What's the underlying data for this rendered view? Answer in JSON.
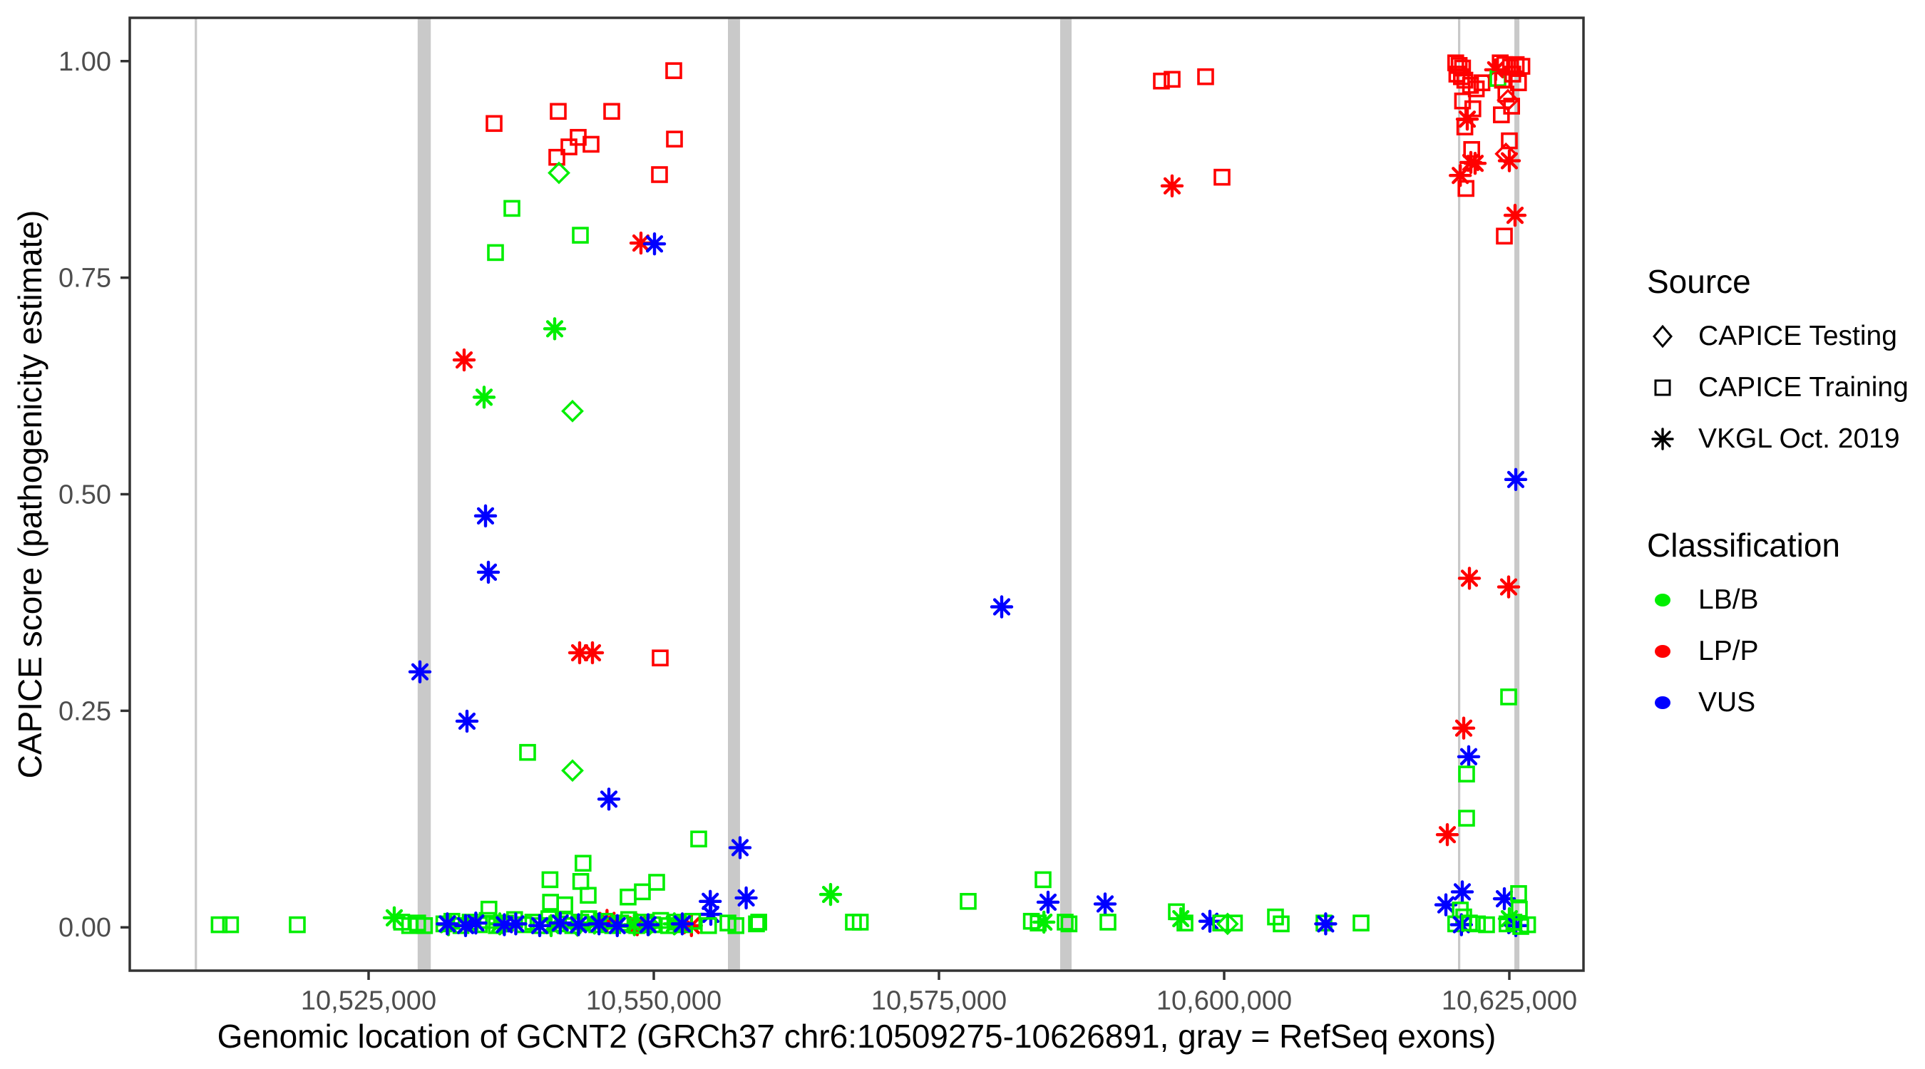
{
  "legend": {
    "source": {
      "title": "Source",
      "items": [
        {
          "label": "CAPICE Testing",
          "marker": "diamond"
        },
        {
          "label": "CAPICE Training",
          "marker": "square"
        },
        {
          "label": "VKGL Oct. 2019",
          "marker": "asterisk"
        }
      ]
    },
    "classification": {
      "title": "Classification",
      "items": [
        {
          "label": "LB/B",
          "color": "#00EE00"
        },
        {
          "label": "LP/P",
          "color": "#FF0000"
        },
        {
          "label": "VUS",
          "color": "#0000FF"
        }
      ]
    }
  },
  "chart_data": {
    "type": "scatter",
    "title": "",
    "xlabel": "Genomic location of GCNT2 (GRCh37 chr6:10509275-10626891, gray = RefSeq exons)",
    "ylabel": "CAPICE score (pathogenicity estimate)",
    "x_range": [
      10504063,
      10631500
    ],
    "y_range": [
      -0.05,
      1.05
    ],
    "x_ticks": [
      {
        "value": 10525000,
        "label": "10,525,000"
      },
      {
        "value": 10550000,
        "label": "10,550,000"
      },
      {
        "value": 10575000,
        "label": "10,575,000"
      },
      {
        "value": 10600000,
        "label": "10,600,000"
      },
      {
        "value": 10625000,
        "label": "10,625,000"
      }
    ],
    "y_ticks": [
      {
        "value": 0.0,
        "label": "0.00"
      },
      {
        "value": 0.25,
        "label": "0.25"
      },
      {
        "value": 0.5,
        "label": "0.50"
      },
      {
        "value": 0.75,
        "label": "0.75"
      },
      {
        "value": 1.0,
        "label": "1.00"
      }
    ],
    "grid": false,
    "legend_position": "right",
    "classification_colors": {
      "LB/B": "#00EE00",
      "LP/P": "#FF0000",
      "VUS": "#0000FF"
    },
    "marker_shapes": {
      "CAPICE Testing": "diamond",
      "CAPICE Training": "square",
      "VKGL Oct. 2019": "asterisk"
    },
    "exon_color": "#C9C9C9",
    "refseq_exons_bp": [
      [
        10509760,
        10509960
      ],
      [
        10529300,
        10530450
      ],
      [
        10556500,
        10557560
      ],
      [
        10585625,
        10586625
      ],
      [
        10620500,
        10620700
      ],
      [
        10625440,
        10625880
      ]
    ],
    "points_format": [
      "genomic_position_bp",
      "capice_score",
      "marker(source)",
      "classification"
    ],
    "points": [
      [
        10551750,
        0.989,
        "square",
        "LP/P"
      ],
      [
        10536000,
        0.928,
        "square",
        "LP/P"
      ],
      [
        10541625,
        0.942,
        "square",
        "LP/P"
      ],
      [
        10546313,
        0.942,
        "square",
        "LP/P"
      ],
      [
        10543375,
        0.912,
        "square",
        "LP/P"
      ],
      [
        10542563,
        0.901,
        "square",
        "LP/P"
      ],
      [
        10544500,
        0.904,
        "square",
        "LP/P"
      ],
      [
        10541500,
        0.889,
        "square",
        "LP/P"
      ],
      [
        10551813,
        0.91,
        "square",
        "LP/P"
      ],
      [
        10550500,
        0.869,
        "square",
        "LP/P"
      ],
      [
        10541688,
        0.871,
        "diamond",
        "LB/B"
      ],
      [
        10537563,
        0.83,
        "square",
        "LB/B"
      ],
      [
        10543563,
        0.799,
        "square",
        "LB/B"
      ],
      [
        10548875,
        0.79,
        "asterisk",
        "LP/P"
      ],
      [
        10550063,
        0.789,
        "asterisk",
        "VUS"
      ],
      [
        10536125,
        0.779,
        "square",
        "LB/B"
      ],
      [
        10541313,
        0.691,
        "asterisk",
        "LB/B"
      ],
      [
        10533375,
        0.655,
        "asterisk",
        "LP/P"
      ],
      [
        10535125,
        0.612,
        "asterisk",
        "LB/B"
      ],
      [
        10542875,
        0.596,
        "diamond",
        "LB/B"
      ],
      [
        10535250,
        0.475,
        "asterisk",
        "VUS"
      ],
      [
        10535500,
        0.41,
        "asterisk",
        "VUS"
      ],
      [
        10543500,
        0.317,
        "asterisk",
        "LP/P"
      ],
      [
        10544625,
        0.317,
        "asterisk",
        "LP/P"
      ],
      [
        10550563,
        0.311,
        "square",
        "LP/P"
      ],
      [
        10529500,
        0.295,
        "asterisk",
        "VUS"
      ],
      [
        10533625,
        0.238,
        "asterisk",
        "VUS"
      ],
      [
        10538938,
        0.202,
        "square",
        "LB/B"
      ],
      [
        10542875,
        0.181,
        "diamond",
        "LB/B"
      ],
      [
        10546063,
        0.148,
        "asterisk",
        "VUS"
      ],
      [
        10553938,
        0.102,
        "square",
        "LB/B"
      ],
      [
        10557563,
        0.092,
        "asterisk",
        "VUS"
      ],
      [
        10543800,
        0.074,
        "square",
        "LB/B"
      ],
      [
        10540900,
        0.055,
        "square",
        "LB/B"
      ],
      [
        10543600,
        0.053,
        "square",
        "LB/B"
      ],
      [
        10550250,
        0.052,
        "square",
        "LB/B"
      ],
      [
        10549000,
        0.041,
        "square",
        "LB/B"
      ],
      [
        10544250,
        0.037,
        "square",
        "LB/B"
      ],
      [
        10547750,
        0.035,
        "square",
        "LB/B"
      ],
      [
        10558100,
        0.034,
        "asterisk",
        "VUS"
      ],
      [
        10554950,
        0.03,
        "asterisk",
        "VUS"
      ],
      [
        10540950,
        0.029,
        "square",
        "LB/B"
      ],
      [
        10542200,
        0.026,
        "square",
        "LB/B"
      ],
      [
        10535550,
        0.021,
        "square",
        "LB/B"
      ],
      [
        10555000,
        0.015,
        "asterisk",
        "VUS"
      ],
      [
        10545900,
        0.008,
        "asterisk",
        "LP/P"
      ],
      [
        10548550,
        0.003,
        "asterisk",
        "LP/P"
      ],
      [
        10553300,
        0.002,
        "asterisk",
        "LP/P"
      ],
      [
        10511900,
        0.003,
        "square",
        "LB/B"
      ],
      [
        10512900,
        0.003,
        "square",
        "LB/B"
      ],
      [
        10518750,
        0.003,
        "square",
        "LB/B"
      ],
      [
        10527250,
        0.011,
        "asterisk",
        "LB/B"
      ],
      [
        10527900,
        0.006,
        "square",
        "LB/B"
      ],
      [
        10528600,
        0.002,
        "square",
        "LB/B"
      ],
      [
        10529300,
        0.005,
        "square",
        "LB/B"
      ],
      [
        10529900,
        0.002,
        "square",
        "LB/B"
      ],
      [
        10531600,
        0.004,
        "square",
        "LB/B"
      ],
      [
        10532300,
        0.007,
        "square",
        "LB/B"
      ],
      [
        10533100,
        0.002,
        "square",
        "LB/B"
      ],
      [
        10533900,
        0.006,
        "square",
        "LB/B"
      ],
      [
        10534700,
        0.003,
        "square",
        "LB/B"
      ],
      [
        10535400,
        0.008,
        "square",
        "LB/B"
      ],
      [
        10536200,
        0.002,
        "square",
        "LB/B"
      ],
      [
        10537000,
        0.005,
        "square",
        "LB/B"
      ],
      [
        10537800,
        0.009,
        "square",
        "LB/B"
      ],
      [
        10538600,
        0.003,
        "square",
        "LB/B"
      ],
      [
        10539400,
        0.006,
        "square",
        "LB/B"
      ],
      [
        10540100,
        0.002,
        "square",
        "LB/B"
      ],
      [
        10540800,
        0.01,
        "square",
        "LB/B"
      ],
      [
        10541500,
        0.004,
        "square",
        "LB/B"
      ],
      [
        10542200,
        0.008,
        "square",
        "LB/B"
      ],
      [
        10542900,
        0.002,
        "square",
        "LB/B"
      ],
      [
        10543600,
        0.006,
        "square",
        "LB/B"
      ],
      [
        10544300,
        0.01,
        "square",
        "LB/B"
      ],
      [
        10545000,
        0.003,
        "square",
        "LB/B"
      ],
      [
        10545700,
        0.007,
        "square",
        "LB/B"
      ],
      [
        10546400,
        0.002,
        "square",
        "LB/B"
      ],
      [
        10547100,
        0.005,
        "square",
        "LB/B"
      ],
      [
        10547800,
        0.009,
        "square",
        "LB/B"
      ],
      [
        10548500,
        0.002,
        "square",
        "LB/B"
      ],
      [
        10549200,
        0.006,
        "square",
        "LB/B"
      ],
      [
        10549900,
        0.003,
        "square",
        "LB/B"
      ],
      [
        10550600,
        0.008,
        "square",
        "LB/B"
      ],
      [
        10551300,
        0.002,
        "square",
        "LB/B"
      ],
      [
        10552000,
        0.006,
        "square",
        "LB/B"
      ],
      [
        10552700,
        0.003,
        "square",
        "LB/B"
      ],
      [
        10553400,
        0.007,
        "square",
        "LB/B"
      ],
      [
        10554800,
        0.002,
        "square",
        "LB/B"
      ],
      [
        10556500,
        0.005,
        "square",
        "LB/B"
      ],
      [
        10557200,
        0.002,
        "square",
        "LB/B"
      ],
      [
        10559000,
        0.004,
        "square",
        "LB/B"
      ],
      [
        10532000,
        0.003,
        "asterisk",
        "LB/B"
      ],
      [
        10536500,
        0.004,
        "asterisk",
        "LB/B"
      ],
      [
        10541000,
        0.002,
        "asterisk",
        "LB/B"
      ],
      [
        10544800,
        0.005,
        "asterisk",
        "LB/B"
      ],
      [
        10548300,
        0.003,
        "asterisk",
        "LB/B"
      ],
      [
        10551800,
        0.004,
        "asterisk",
        "LB/B"
      ],
      [
        10543300,
        0.002,
        "diamond",
        "LB/B"
      ],
      [
        10549600,
        0.003,
        "diamond",
        "LB/B"
      ],
      [
        10531900,
        0.004,
        "asterisk",
        "VUS"
      ],
      [
        10533500,
        0.002,
        "asterisk",
        "VUS"
      ],
      [
        10534400,
        0.005,
        "asterisk",
        "VUS"
      ],
      [
        10536900,
        0.003,
        "asterisk",
        "VUS"
      ],
      [
        10537900,
        0.004,
        "asterisk",
        "VUS"
      ],
      [
        10540000,
        0.002,
        "asterisk",
        "VUS"
      ],
      [
        10541800,
        0.005,
        "asterisk",
        "VUS"
      ],
      [
        10543400,
        0.003,
        "asterisk",
        "VUS"
      ],
      [
        10545200,
        0.004,
        "asterisk",
        "VUS"
      ],
      [
        10546800,
        0.002,
        "asterisk",
        "VUS"
      ],
      [
        10549500,
        0.003,
        "asterisk",
        "VUS"
      ],
      [
        10552500,
        0.004,
        "asterisk",
        "VUS"
      ],
      [
        10559200,
        0.006,
        "square",
        "LB/B"
      ],
      [
        10565500,
        0.038,
        "asterisk",
        "LB/B"
      ],
      [
        10567500,
        0.006,
        "square",
        "LB/B"
      ],
      [
        10568100,
        0.006,
        "square",
        "LB/B"
      ],
      [
        10577563,
        0.03,
        "square",
        "LB/B"
      ],
      [
        10584125,
        0.055,
        "square",
        "LB/B"
      ],
      [
        10584563,
        0.029,
        "asterisk",
        "VUS"
      ],
      [
        10583100,
        0.007,
        "square",
        "LB/B"
      ],
      [
        10583700,
        0.005,
        "square",
        "LB/B"
      ],
      [
        10584200,
        0.006,
        "asterisk",
        "LB/B"
      ],
      [
        10586063,
        0.006,
        "square",
        "LB/B"
      ],
      [
        10586400,
        0.004,
        "square",
        "LB/B"
      ],
      [
        10589563,
        0.027,
        "asterisk",
        "VUS"
      ],
      [
        10589813,
        0.006,
        "square",
        "LB/B"
      ],
      [
        10580500,
        0.37,
        "asterisk",
        "VUS"
      ],
      [
        10595813,
        0.018,
        "square",
        "LB/B"
      ],
      [
        10596200,
        0.01,
        "asterisk",
        "LB/B"
      ],
      [
        10596563,
        0.005,
        "square",
        "LB/B"
      ],
      [
        10598750,
        0.007,
        "asterisk",
        "VUS"
      ],
      [
        10599700,
        0.005,
        "square",
        "LB/B"
      ],
      [
        10600300,
        0.004,
        "diamond",
        "LB/B"
      ],
      [
        10600900,
        0.005,
        "square",
        "LB/B"
      ],
      [
        10604500,
        0.012,
        "square",
        "LB/B"
      ],
      [
        10605000,
        0.004,
        "square",
        "LB/B"
      ],
      [
        10608750,
        0.005,
        "square",
        "LB/B"
      ],
      [
        10608900,
        0.004,
        "asterisk",
        "VUS"
      ],
      [
        10612000,
        0.005,
        "square",
        "LB/B"
      ],
      [
        10594500,
        0.977,
        "square",
        "LP/P"
      ],
      [
        10595438,
        0.979,
        "square",
        "LP/P"
      ],
      [
        10598375,
        0.982,
        "square",
        "LP/P"
      ],
      [
        10595438,
        0.856,
        "asterisk",
        "LP/P"
      ],
      [
        10599813,
        0.866,
        "square",
        "LP/P"
      ],
      [
        10620300,
        0.998,
        "square",
        "LP/P"
      ],
      [
        10620600,
        0.995,
        "square",
        "LP/P"
      ],
      [
        10620900,
        0.992,
        "square",
        "LP/P"
      ],
      [
        10620400,
        0.985,
        "square",
        "LP/P"
      ],
      [
        10620800,
        0.982,
        "square",
        "LP/P"
      ],
      [
        10621100,
        0.978,
        "square",
        "LP/P"
      ],
      [
        10621600,
        0.972,
        "square",
        "LP/P"
      ],
      [
        10622100,
        0.968,
        "square",
        "LP/P"
      ],
      [
        10622600,
        0.975,
        "square",
        "LP/P"
      ],
      [
        10620900,
        0.954,
        "square",
        "LP/P"
      ],
      [
        10621800,
        0.945,
        "square",
        "LP/P"
      ],
      [
        10621100,
        0.924,
        "square",
        "LP/P"
      ],
      [
        10621313,
        0.933,
        "asterisk",
        "LP/P"
      ],
      [
        10621625,
        0.883,
        "asterisk",
        "LP/P"
      ],
      [
        10622000,
        0.882,
        "asterisk",
        "LP/P"
      ],
      [
        10621700,
        0.898,
        "square",
        "LP/P"
      ],
      [
        10620700,
        0.868,
        "asterisk",
        "LP/P"
      ],
      [
        10621200,
        0.853,
        "square",
        "LP/P"
      ],
      [
        10623800,
        0.99,
        "asterisk",
        "LP/P"
      ],
      [
        10624000,
        0.98,
        "square",
        "LB/B"
      ],
      [
        10624200,
        0.998,
        "square",
        "LP/P"
      ],
      [
        10624600,
        0.996,
        "square",
        "LP/P"
      ],
      [
        10625100,
        0.993,
        "square",
        "LP/P"
      ],
      [
        10625600,
        0.996,
        "square",
        "LP/P"
      ],
      [
        10626100,
        0.994,
        "square",
        "LP/P"
      ],
      [
        10625300,
        0.985,
        "square",
        "LP/P"
      ],
      [
        10624400,
        0.978,
        "square",
        "LP/P"
      ],
      [
        10625800,
        0.975,
        "square",
        "LP/P"
      ],
      [
        10624700,
        0.962,
        "square",
        "LP/P"
      ],
      [
        10624875,
        0.955,
        "diamond",
        "LP/P"
      ],
      [
        10625200,
        0.948,
        "square",
        "LP/P"
      ],
      [
        10624300,
        0.938,
        "square",
        "LP/P"
      ],
      [
        10625000,
        0.908,
        "square",
        "LP/P"
      ],
      [
        10624700,
        0.893,
        "diamond",
        "LP/P"
      ],
      [
        10625000,
        0.885,
        "asterisk",
        "LP/P"
      ],
      [
        10625500,
        0.822,
        "asterisk",
        "LP/P"
      ],
      [
        10624563,
        0.798,
        "square",
        "LP/P"
      ],
      [
        10625563,
        0.517,
        "asterisk",
        "VUS"
      ],
      [
        10621500,
        0.403,
        "asterisk",
        "LP/P"
      ],
      [
        10624938,
        0.393,
        "asterisk",
        "LP/P"
      ],
      [
        10624938,
        0.266,
        "square",
        "LB/B"
      ],
      [
        10621000,
        0.23,
        "asterisk",
        "LP/P"
      ],
      [
        10621438,
        0.197,
        "asterisk",
        "VUS"
      ],
      [
        10621250,
        0.177,
        "square",
        "LB/B"
      ],
      [
        10621250,
        0.126,
        "square",
        "LB/B"
      ],
      [
        10619563,
        0.107,
        "asterisk",
        "LP/P"
      ],
      [
        10620875,
        0.041,
        "asterisk",
        "VUS"
      ],
      [
        10619438,
        0.026,
        "asterisk",
        "VUS"
      ],
      [
        10620700,
        0.02,
        "square",
        "LB/B"
      ],
      [
        10621000,
        0.012,
        "square",
        "LB/B"
      ],
      [
        10620300,
        0.004,
        "square",
        "LB/B"
      ],
      [
        10620800,
        0.003,
        "asterisk",
        "VUS"
      ],
      [
        10621500,
        0.005,
        "square",
        "LB/B"
      ],
      [
        10622200,
        0.004,
        "square",
        "LB/B"
      ],
      [
        10623000,
        0.003,
        "square",
        "LB/B"
      ],
      [
        10624563,
        0.033,
        "asterisk",
        "VUS"
      ],
      [
        10625813,
        0.039,
        "square",
        "LB/B"
      ],
      [
        10625875,
        0.021,
        "square",
        "LB/B"
      ],
      [
        10625000,
        0.01,
        "asterisk",
        "LB/B"
      ],
      [
        10625563,
        0.002,
        "asterisk",
        "VUS"
      ],
      [
        10624800,
        0.004,
        "square",
        "LB/B"
      ],
      [
        10625400,
        0.006,
        "square",
        "LB/B"
      ],
      [
        10626000,
        0.001,
        "square",
        "LB/B"
      ],
      [
        10626600,
        0.003,
        "square",
        "LB/B"
      ]
    ]
  }
}
